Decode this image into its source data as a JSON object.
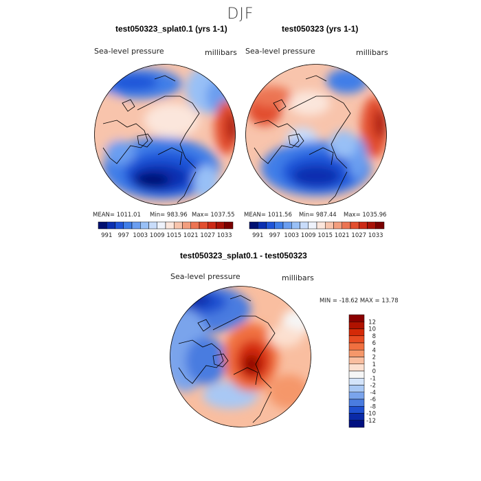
{
  "page": {
    "season": "DJF"
  },
  "chart_data": [
    {
      "type": "heatmap",
      "title": "test050323_splat0.1 (yrs 1-1)",
      "variable": "Sea-level pressure",
      "units": "millibars",
      "stats": {
        "mean": "MEAN= 1011.01",
        "min": "Min= 983.96",
        "max": "Max= 1037.55"
      },
      "colorbar_ticks": [
        "991",
        "997",
        "1003",
        "1009",
        "1015",
        "1021",
        "1027",
        "1033"
      ],
      "colors": [
        "#001070",
        "#0a2fb0",
        "#1f55d8",
        "#3f7ee8",
        "#6a9ef0",
        "#98c0f6",
        "#c8dcfa",
        "#eef2fb",
        "#fbe6dc",
        "#f8c4ac",
        "#f39e7e",
        "#ec7452",
        "#e24e2e",
        "#cc2a16",
        "#a81208",
        "#7a0000"
      ]
    },
    {
      "type": "heatmap",
      "title": "test050323 (yrs 1-1)",
      "variable": "Sea-level pressure",
      "units": "millibars",
      "stats": {
        "mean": "MEAN= 1011.56",
        "min": "Min= 987.44",
        "max": "Max= 1035.96"
      },
      "colorbar_ticks": [
        "991",
        "997",
        "1003",
        "1009",
        "1015",
        "1021",
        "1027",
        "1033"
      ],
      "colors": [
        "#001070",
        "#0a2fb0",
        "#1f55d8",
        "#3f7ee8",
        "#6a9ef0",
        "#98c0f6",
        "#c8dcfa",
        "#eef2fb",
        "#fbe6dc",
        "#f8c4ac",
        "#f39e7e",
        "#ec7452",
        "#e24e2e",
        "#cc2a16",
        "#a81208",
        "#7a0000"
      ]
    },
    {
      "type": "heatmap",
      "title": "test050323_splat0.1 - test050323",
      "variable": "Sea-level pressure",
      "units": "millibars",
      "stats_text": "MIN = -18.62 MAX =  13.78",
      "colorbar_ticks": [
        "12",
        "10",
        "8",
        "6",
        "4",
        "2",
        "1",
        "0",
        "-1",
        "-2",
        "-4",
        "-6",
        "-8",
        "-10",
        "-12"
      ],
      "colors": [
        "#8a0000",
        "#b01200",
        "#d42a08",
        "#e84c22",
        "#f07040",
        "#f5976a",
        "#f9bea0",
        "#fce0d0",
        "#f6f6f6",
        "#d4e4fa",
        "#a9c8f4",
        "#7aa4ec",
        "#4a7ce0",
        "#1f50d0",
        "#0a2aa8",
        "#001080"
      ]
    }
  ]
}
